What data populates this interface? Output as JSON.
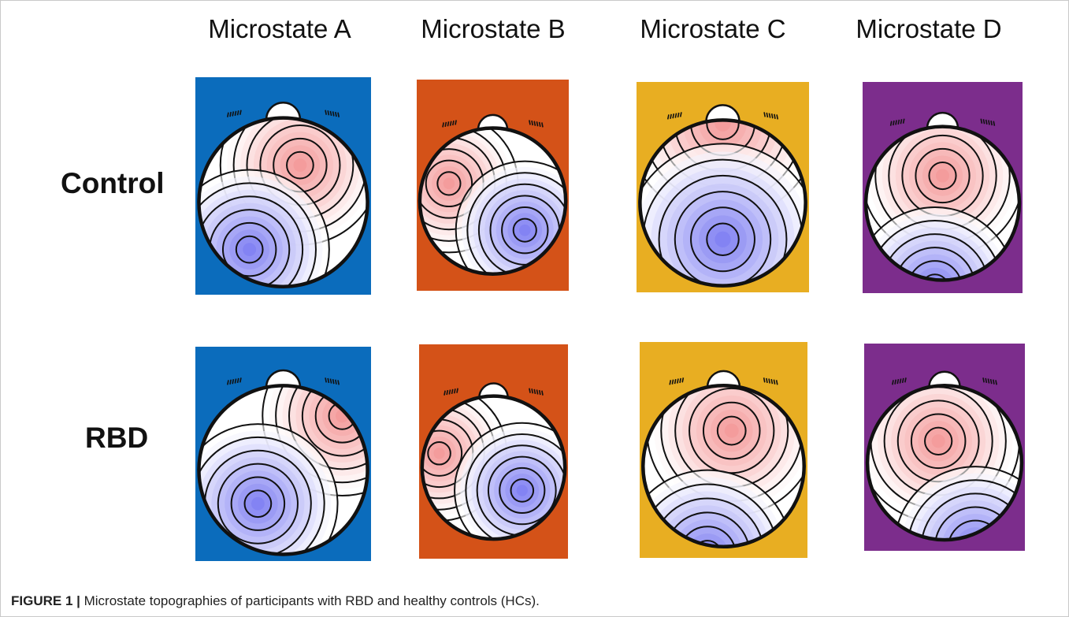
{
  "columns": [
    "Microstate A",
    "Microstate B",
    "Microstate C",
    "Microstate D"
  ],
  "rows": [
    "Control",
    "RBD"
  ],
  "caption": {
    "label": "FIGURE 1 |",
    "text": " Microstate topographies of participants with RBD and healthy controls (HCs)."
  },
  "colors": {
    "microstate_a": "#0b6cbc",
    "microstate_b": "#d45218",
    "microstate_c": "#e8ae22",
    "microstate_d": "#7c2d8c",
    "positive": "#f28a8a",
    "negative": "#6f6ff0"
  },
  "maps": [
    {
      "row": "Control",
      "column": "Microstate A",
      "icon": "scalp-topography-icon"
    },
    {
      "row": "Control",
      "column": "Microstate B",
      "icon": "scalp-topography-icon"
    },
    {
      "row": "Control",
      "column": "Microstate C",
      "icon": "scalp-topography-icon"
    },
    {
      "row": "Control",
      "column": "Microstate D",
      "icon": "scalp-topography-icon"
    },
    {
      "row": "RBD",
      "column": "Microstate A",
      "icon": "scalp-topography-icon"
    },
    {
      "row": "RBD",
      "column": "Microstate B",
      "icon": "scalp-topography-icon"
    },
    {
      "row": "RBD",
      "column": "Microstate C",
      "icon": "scalp-topography-icon"
    },
    {
      "row": "RBD",
      "column": "Microstate D",
      "icon": "scalp-topography-icon"
    }
  ]
}
